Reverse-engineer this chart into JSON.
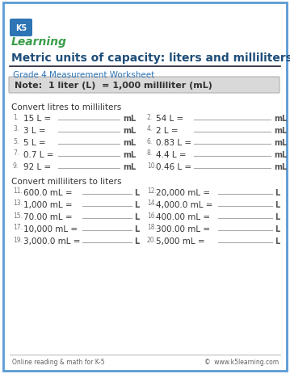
{
  "title": "Metric units of capacity: liters and milliliters",
  "grade_label": "Grade 4 Measurement Worksheet",
  "note": "Note:  1 liter (L)  = 1,000 milliliter (mL)",
  "section1_header": "Convert litres to milliliters",
  "section2_header": "Convert milliliters to liters",
  "col1_problems": [
    {
      "num": "1.",
      "text": "15 L = ",
      "unit": "mL"
    },
    {
      "num": "3.",
      "text": "3 L = ",
      "unit": "mL"
    },
    {
      "num": "5.",
      "text": "5 L = ",
      "unit": "mL"
    },
    {
      "num": "7.",
      "text": "0.7 L = ",
      "unit": "mL"
    },
    {
      "num": "9.",
      "text": "92 L = ",
      "unit": "mL"
    }
  ],
  "col2_problems": [
    {
      "num": "2.",
      "text": "54 L = ",
      "unit": "mL"
    },
    {
      "num": "4.",
      "text": "2 L = ",
      "unit": "mL"
    },
    {
      "num": "6.",
      "text": "0.83 L = ",
      "unit": "mL"
    },
    {
      "num": "8.",
      "text": "4.4 L = ",
      "unit": "mL"
    },
    {
      "num": "10.",
      "text": "0.46 L = ",
      "unit": "mL"
    }
  ],
  "col3_problems": [
    {
      "num": "11.",
      "text": "600.0 mL = ",
      "unit": "L"
    },
    {
      "num": "13.",
      "text": "1,000 mL = ",
      "unit": "L"
    },
    {
      "num": "15.",
      "text": "70.00 mL = ",
      "unit": "L"
    },
    {
      "num": "17.",
      "text": "10,000 mL = ",
      "unit": "L"
    },
    {
      "num": "19.",
      "text": "3,000.0 mL = ",
      "unit": "L"
    }
  ],
  "col4_problems": [
    {
      "num": "12.",
      "text": "20,000 mL = ",
      "unit": "L"
    },
    {
      "num": "14.",
      "text": "4,000.0 mL = ",
      "unit": "L"
    },
    {
      "num": "16.",
      "text": "400.00 mL = ",
      "unit": "L"
    },
    {
      "num": "18.",
      "text": "300.00 mL = ",
      "unit": "L"
    },
    {
      "num": "20.",
      "text": "5,000 mL = ",
      "unit": "L"
    }
  ],
  "footer_left": "Online reading & math for K-5",
  "footer_right": "©  www.k5learning.com",
  "border_color": "#5b9bd5",
  "title_color": "#1f4e79",
  "grade_color": "#2e75b6",
  "note_bg": "#d9d9d9",
  "note_border": "#b0b0b0",
  "note_color": "#333333",
  "section_color": "#333333",
  "problem_color": "#333333",
  "num_color": "#777777",
  "unit_color": "#555555",
  "line_color": "#aaaaaa",
  "bg_color": "#ffffff",
  "footer_color": "#606060",
  "logo_green": "#3a9e4a",
  "logo_blue": "#2e75b6"
}
